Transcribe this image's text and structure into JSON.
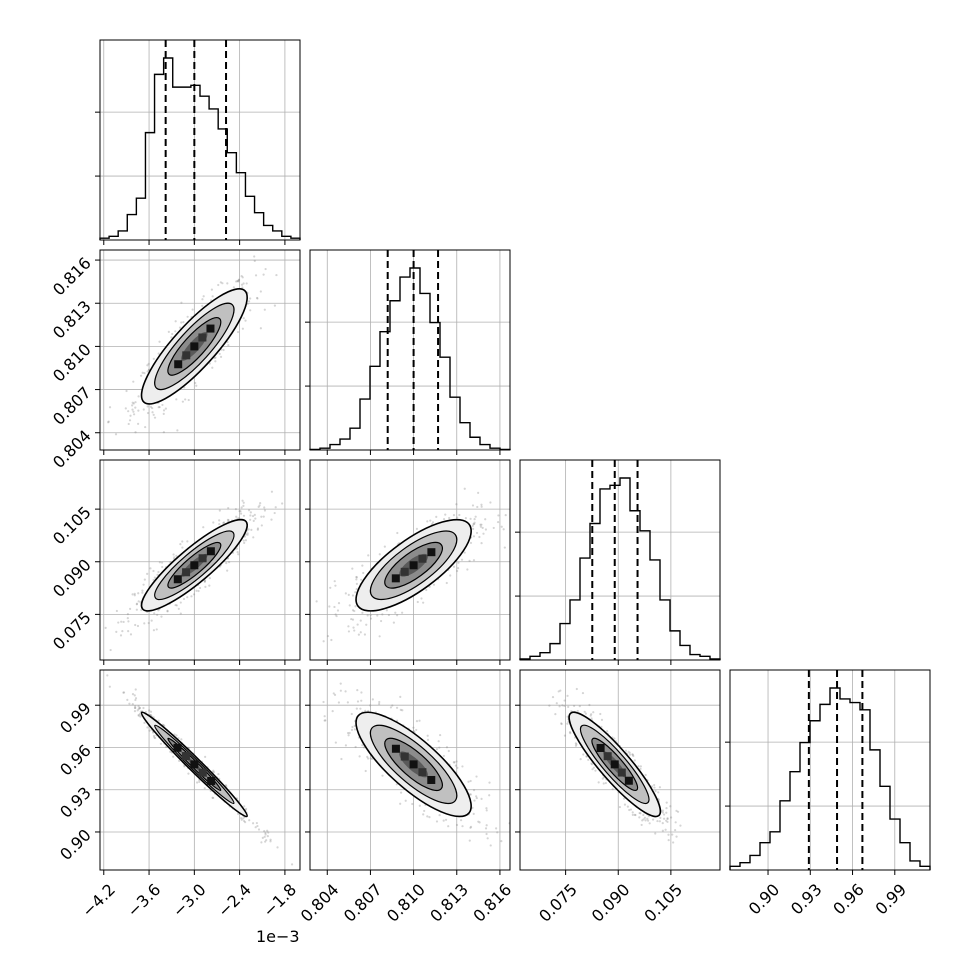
{
  "chart_data": {
    "type": "corner",
    "grid": true,
    "parameters": [
      {
        "range": [
          -4.25,
          -1.6
        ],
        "ticks": [
          -4.2,
          -3.6,
          -3.0,
          -2.4,
          -1.8
        ],
        "tick_labels": [
          "−4.2",
          "−3.6",
          "−3.0",
          "−2.4",
          "−1.8"
        ],
        "offset_label": "1e−3",
        "quantiles": [
          -3.38,
          -3.0,
          -2.58
        ]
      },
      {
        "range": [
          0.8028,
          0.8167
        ],
        "ticks": [
          0.804,
          0.807,
          0.81,
          0.813,
          0.816
        ],
        "tick_labels": [
          "0.804",
          "0.807",
          "0.810",
          "0.813",
          "0.816"
        ],
        "quantiles": [
          0.8082,
          0.81,
          0.8117
        ]
      },
      {
        "range": [
          0.062,
          0.119
        ],
        "ticks": [
          0.075,
          0.09,
          0.105
        ],
        "tick_labels": [
          "0.075",
          "0.090",
          "0.105"
        ],
        "quantiles": [
          0.0826,
          0.089,
          0.0955
        ]
      },
      {
        "range": [
          0.873,
          1.015
        ],
        "ticks": [
          0.9,
          0.93,
          0.96,
          0.99
        ],
        "tick_labels": [
          "0.90",
          "0.93",
          "0.96",
          "0.99"
        ],
        "quantiles": [
          0.929,
          0.949,
          0.967
        ]
      }
    ],
    "histograms": [
      [
        0.01,
        0.02,
        0.05,
        0.14,
        0.23,
        0.59,
        0.91,
        1.0,
        0.84,
        0.84,
        0.85,
        0.79,
        0.72,
        0.61,
        0.48,
        0.37,
        0.24,
        0.15,
        0.08,
        0.05,
        0.02,
        0.01
      ],
      [
        0.003,
        0.01,
        0.03,
        0.06,
        0.12,
        0.28,
        0.46,
        0.65,
        0.82,
        0.95,
        1.0,
        0.86,
        0.7,
        0.51,
        0.29,
        0.15,
        0.07,
        0.03,
        0.01,
        0.003
      ],
      [
        0.006,
        0.02,
        0.04,
        0.09,
        0.2,
        0.33,
        0.56,
        0.75,
        0.94,
        0.96,
        1.0,
        0.82,
        0.71,
        0.55,
        0.33,
        0.16,
        0.08,
        0.03,
        0.02,
        0.006
      ],
      [
        0.02,
        0.04,
        0.08,
        0.15,
        0.21,
        0.38,
        0.54,
        0.7,
        0.82,
        0.91,
        1.0,
        0.94,
        0.92,
        0.88,
        0.66,
        0.46,
        0.28,
        0.15,
        0.05,
        0.02
      ]
    ],
    "pairs": [
      {
        "x": 0,
        "y": 1,
        "mean": [
          -3.0,
          0.81
        ],
        "sd": [
          0.35,
          0.002
        ],
        "rho": 0.85
      },
      {
        "x": 0,
        "y": 2,
        "mean": [
          -3.0,
          0.089
        ],
        "sd": [
          0.35,
          0.0065
        ],
        "rho": 0.88
      },
      {
        "x": 1,
        "y": 2,
        "mean": [
          0.81,
          0.089
        ],
        "sd": [
          0.002,
          0.0065
        ],
        "rho": 0.75
      },
      {
        "x": 0,
        "y": 3,
        "mean": [
          -3.0,
          0.948
        ],
        "sd": [
          0.35,
          0.0185
        ],
        "rho": -0.985
      },
      {
        "x": 1,
        "y": 3,
        "mean": [
          0.81,
          0.948
        ],
        "sd": [
          0.002,
          0.0185
        ],
        "rho": -0.8
      },
      {
        "x": 2,
        "y": 3,
        "mean": [
          0.089,
          0.948
        ],
        "sd": [
          0.0065,
          0.0185
        ],
        "rho": -0.9
      }
    ],
    "contour_sigmas": [
      0.5,
      1.0,
      1.5,
      2.0
    ],
    "colors": {
      "line": "#000000",
      "grid": "#b0b0b0",
      "fill_levels": [
        "#eeeeee",
        "#c0c0c0",
        "#8c8c8c",
        "#5a5a5a"
      ],
      "points": "#888888"
    }
  }
}
